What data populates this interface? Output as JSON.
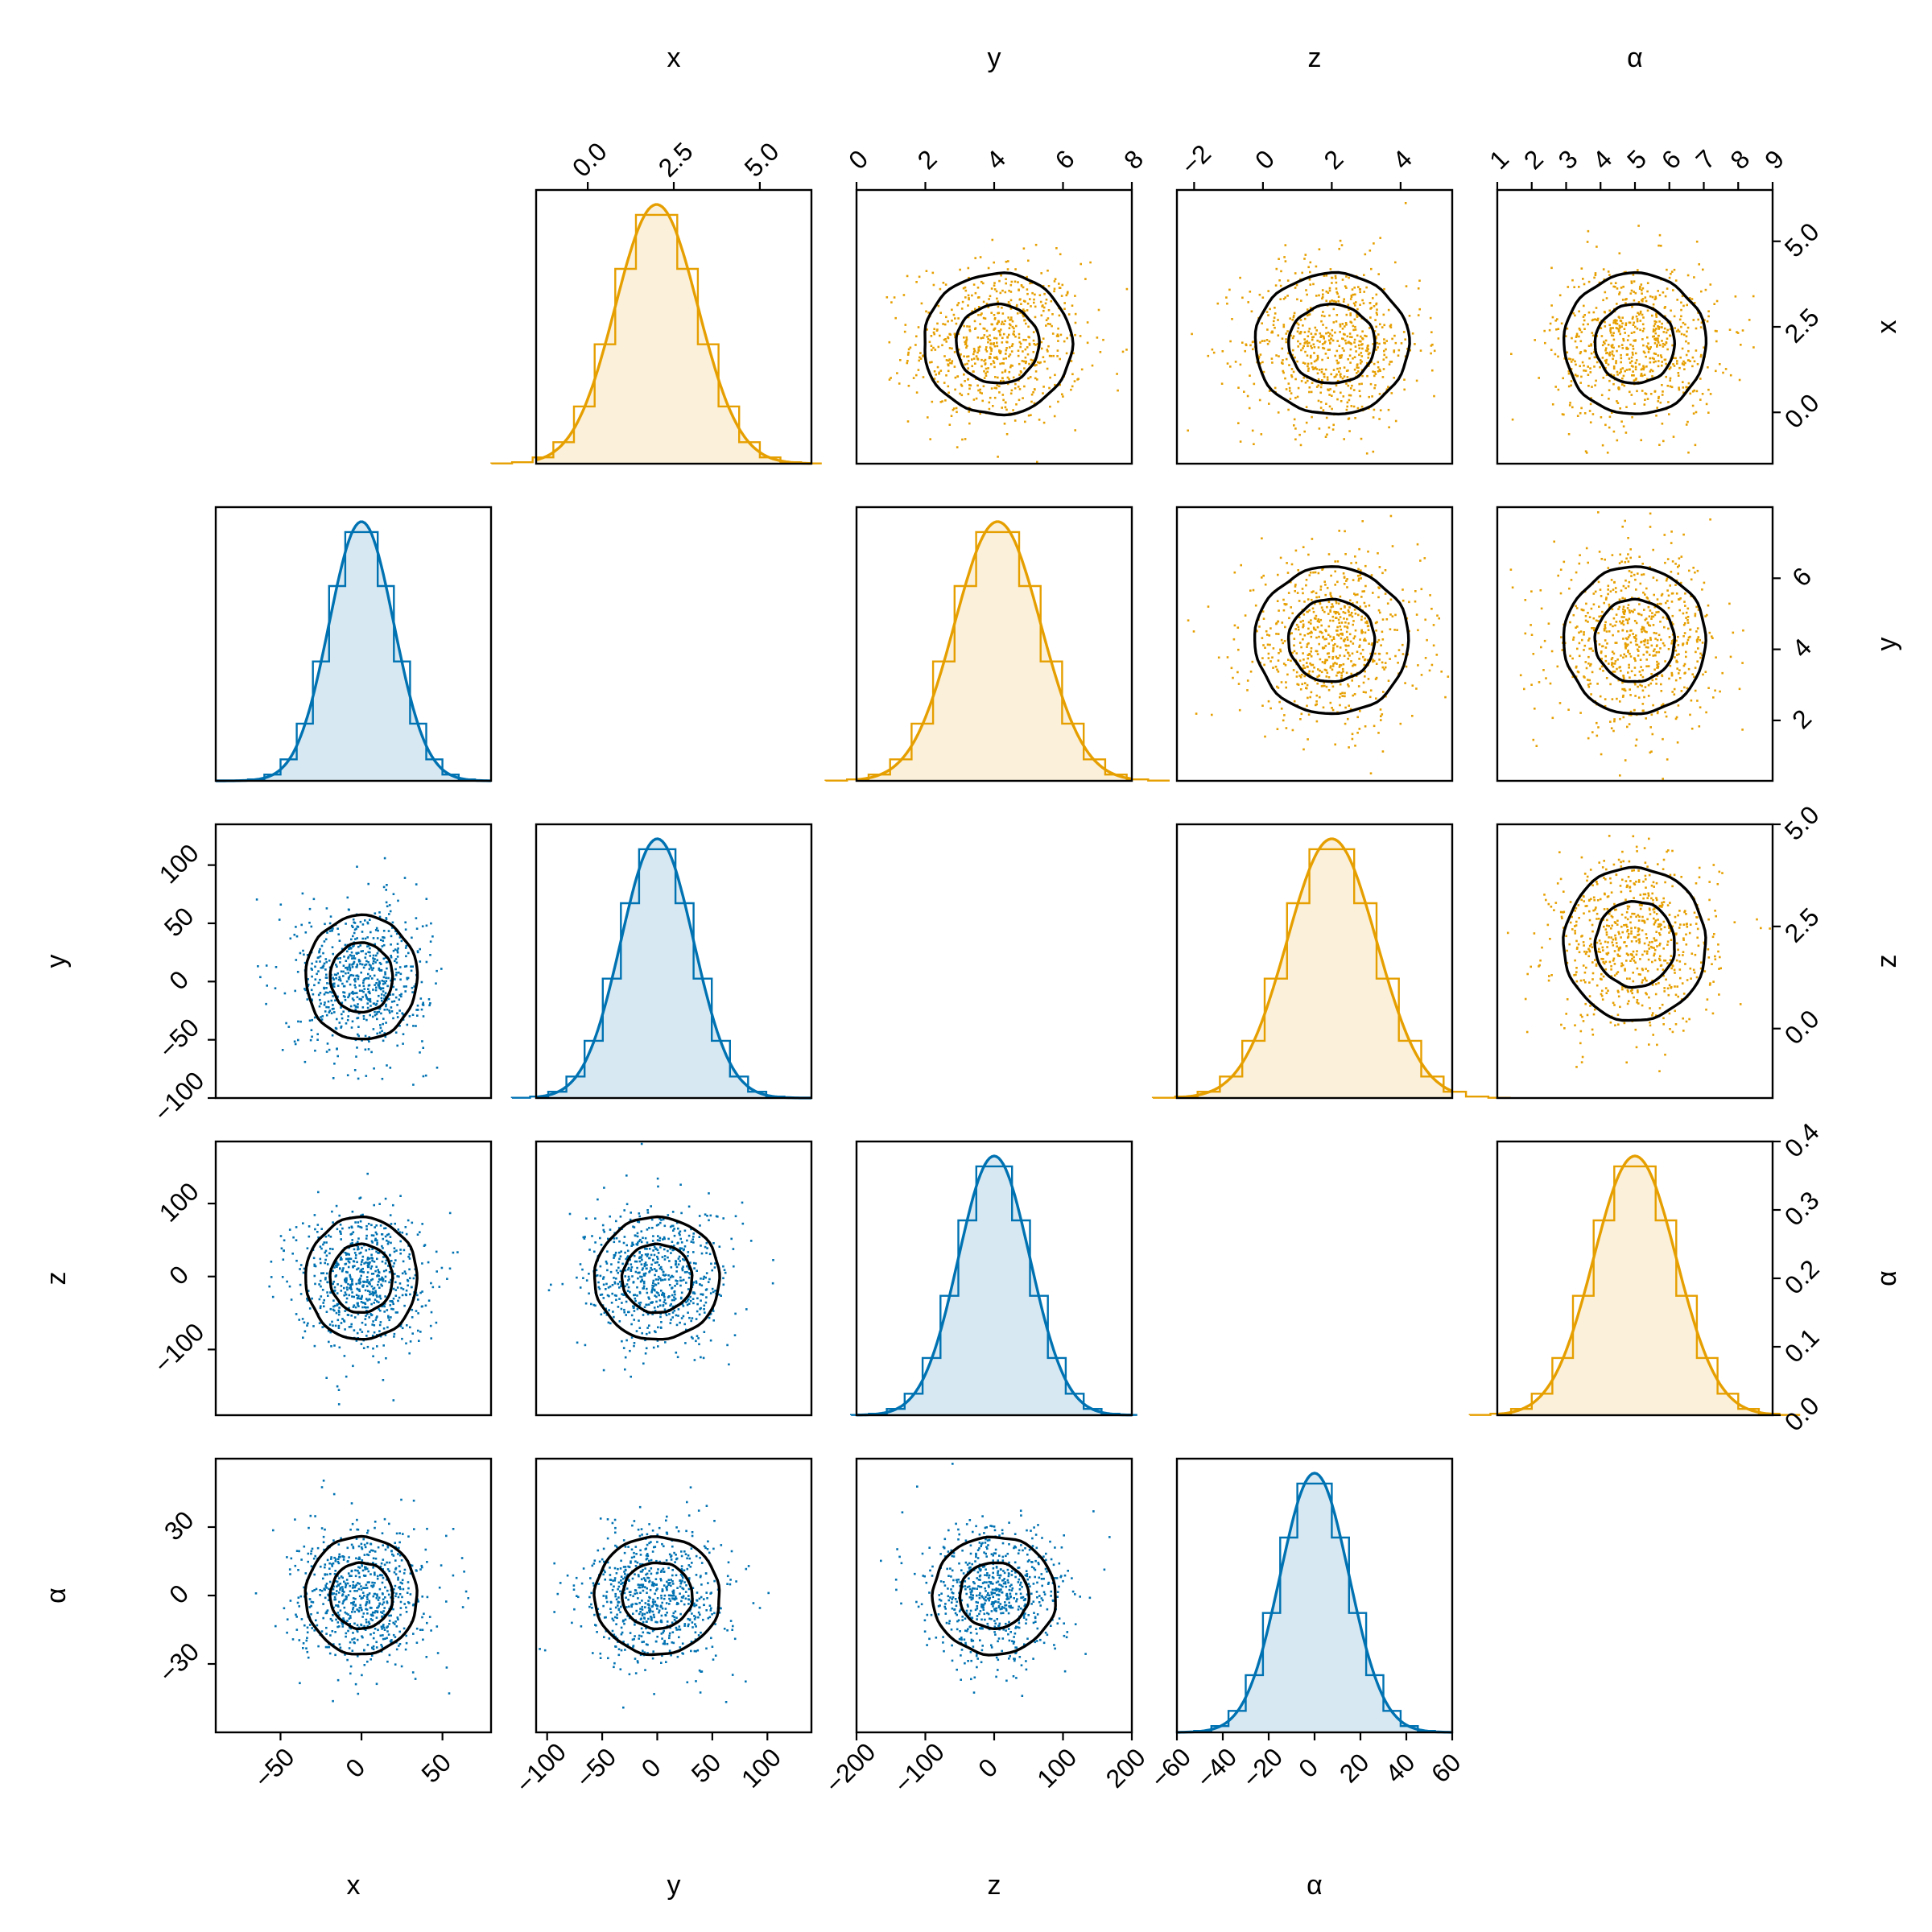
{
  "colors": {
    "upper_series": "#E69F00",
    "upper_fill_light": "#FBF0DA",
    "upper_fill_dark": "#F7E1B5",
    "lower_series": "#0072B2",
    "lower_fill_light": "#D8E8F2",
    "lower_fill_dark": "#B6D6E8",
    "contour": "#000000",
    "frame": "#000000",
    "background": "#FFFFFF"
  },
  "chart_data": {
    "type": "corner",
    "variables": [
      "x",
      "y",
      "z",
      "α"
    ],
    "series": [
      {
        "role": "upper-triangle",
        "color": "#E69F00",
        "variables": [
          {
            "name": "x",
            "mean": 2.0,
            "sd": 1.2,
            "range": [
              -1.5,
              6.5
            ],
            "ticks": [
              "0.0",
              "2.5",
              "5.0"
            ],
            "tick_values": [
              0,
              2.5,
              5
            ]
          },
          {
            "name": "y",
            "mean": 4.1,
            "sd": 1.25,
            "range": [
              0,
              8
            ],
            "ticks": [
              "0",
              "2",
              "4",
              "6",
              "8"
            ],
            "tick_values": [
              0,
              2,
              4,
              6,
              8
            ]
          },
          {
            "name": "z",
            "mean": 2.0,
            "sd": 1.3,
            "range": [
              -2.5,
              5.5
            ],
            "ticks": [
              "−2",
              "0",
              "2",
              "4"
            ],
            "tick_values": [
              -2,
              0,
              2,
              4
            ]
          },
          {
            "name": "α",
            "mean": 5.0,
            "sd": 1.2,
            "range": [
              1,
              9
            ],
            "ticks": [
              "1",
              "2",
              "3",
              "4",
              "5",
              "6",
              "7",
              "8",
              "9"
            ],
            "tick_values": [
              1,
              2,
              3,
              4,
              5,
              6,
              7,
              8,
              9
            ]
          }
        ],
        "right_axes": [
          {
            "row": 0,
            "label": "x",
            "range": [
              -1.5,
              6.5
            ],
            "ticks": [
              "0.0",
              "2.5",
              "5.0"
            ],
            "tick_values": [
              0,
              2.5,
              5
            ]
          },
          {
            "row": 1,
            "label": "y",
            "range": [
              0.3,
              8.0
            ],
            "ticks": [
              "2",
              "4",
              "6"
            ],
            "tick_values": [
              2,
              4,
              6
            ]
          },
          {
            "row": 2,
            "label": "z",
            "range": [
              -1.7,
              5.0
            ],
            "ticks": [
              "0.0",
              "2.5",
              "5.0"
            ],
            "tick_values": [
              0,
              2.5,
              5
            ]
          },
          {
            "row": 3,
            "label": "α",
            "range": [
              0,
              0.4
            ],
            "ticks": [
              "0.0",
              "0.1",
              "0.2",
              "0.3",
              "0.4"
            ],
            "tick_values": [
              0,
              0.1,
              0.2,
              0.3,
              0.4
            ]
          }
        ]
      },
      {
        "role": "lower-triangle",
        "color": "#0072B2",
        "variables": [
          {
            "name": "x",
            "mean": 0,
            "sd": 20,
            "range": [
              -90,
              80
            ],
            "ticks": [
              "−50",
              "0",
              "50"
            ],
            "tick_values": [
              -50,
              0,
              50
            ]
          },
          {
            "name": "y",
            "mean": 0,
            "sd": 33,
            "range": [
              -110,
              140
            ],
            "ticks": [
              "−100",
              "−50",
              "0",
              "50",
              "100"
            ],
            "tick_values": [
              -100,
              -50,
              0,
              50,
              100
            ]
          },
          {
            "name": "z",
            "mean": 0,
            "sd": 52,
            "range": [
              -200,
              200
            ],
            "ticks": [
              "−200",
              "−100",
              "0",
              "100",
              "200"
            ],
            "tick_values": [
              -200,
              -100,
              0,
              100,
              200
            ]
          },
          {
            "name": "α",
            "mean": 0,
            "sd": 15,
            "range": [
              -60,
              60
            ],
            "ticks": [
              "−60",
              "−40",
              "−20",
              "0",
              "20",
              "40",
              "60"
            ],
            "tick_values": [
              -60,
              -40,
              -20,
              0,
              20,
              40,
              60
            ]
          }
        ],
        "left_axes": [
          {
            "row": 2,
            "label": "y",
            "range": [
              -100,
              135
            ],
            "ticks": [
              "−100",
              "−50",
              "0",
              "50",
              "100"
            ],
            "tick_values": [
              -100,
              -50,
              0,
              50,
              100
            ]
          },
          {
            "row": 3,
            "label": "z",
            "range": [
              -190,
              185
            ],
            "ticks": [
              "−100",
              "0",
              "100"
            ],
            "tick_values": [
              -100,
              0,
              100
            ]
          },
          {
            "row": 4,
            "label": "α",
            "range": [
              -60,
              60
            ],
            "ticks": [
              "−30",
              "0",
              "30"
            ],
            "tick_values": [
              -30,
              0,
              30
            ]
          }
        ]
      }
    ],
    "top_labels": [
      "x",
      "y",
      "z",
      "α"
    ],
    "bottom_labels": [
      "x",
      "y",
      "z",
      "α"
    ],
    "right_labels": [
      "x",
      "y",
      "z",
      "α"
    ],
    "left_labels": [
      "y",
      "z",
      "α"
    ],
    "contour_levels": [
      "inner",
      "outer"
    ],
    "grid": false,
    "legend": "none"
  }
}
